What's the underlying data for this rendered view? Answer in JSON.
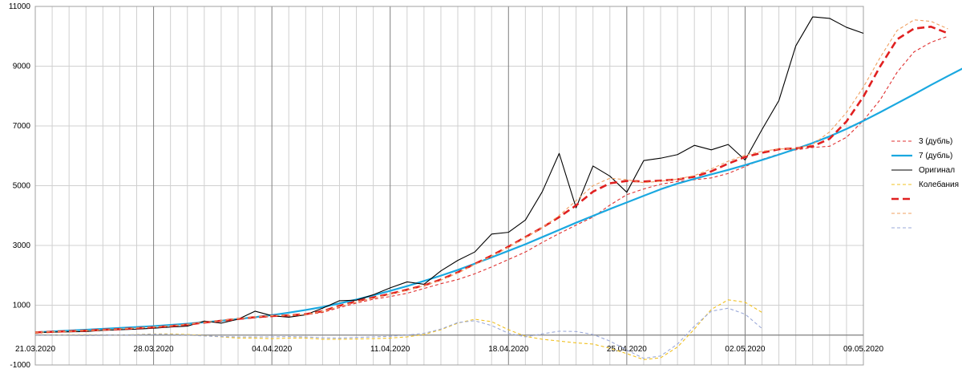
{
  "chart_data": {
    "type": "line",
    "title": "",
    "xlabel": "",
    "ylabel": "",
    "x_start": "21.03.2020",
    "x_end": "09.05.2020",
    "x_ticks": [
      "21.03.2020",
      "28.03.2020",
      "04.04.2020",
      "11.04.2020",
      "18.04.2020",
      "25.04.2020",
      "02.05.2020",
      "09.05.2020"
    ],
    "ylim": [
      -1000,
      11000
    ],
    "y_ticks": [
      -1000,
      1000,
      3000,
      5000,
      7000,
      9000,
      11000
    ],
    "grid": true,
    "legend_position": "right",
    "series": [
      {
        "name": "3 (дубль)",
        "color": "#e03030",
        "dash": "dashed-thin",
        "values": [
          100,
          110,
          120,
          140,
          170,
          200,
          230,
          260,
          300,
          350,
          420,
          470,
          520,
          580,
          620,
          640,
          680,
          760,
          920,
          1070,
          1200,
          1290,
          1400,
          1560,
          1720,
          1860,
          2050,
          2280,
          2530,
          2780,
          3100,
          3400,
          3680,
          3950,
          4350,
          4700,
          4890,
          5050,
          5140,
          5200,
          5260,
          5410,
          5640,
          5880,
          6060,
          6200,
          6280,
          6320,
          6620,
          7180,
          7880,
          8800,
          9480,
          9800,
          10000
        ]
      },
      {
        "name": "7 (дубль)",
        "color": "#1aa8e0",
        "dash": "solid-thick",
        "values": [
          90,
          120,
          150,
          180,
          210,
          240,
          270,
          300,
          340,
          380,
          430,
          480,
          540,
          600,
          670,
          750,
          840,
          940,
          1060,
          1190,
          1330,
          1480,
          1640,
          1810,
          1990,
          2180,
          2390,
          2600,
          2820,
          3040,
          3280,
          3520,
          3760,
          3990,
          4220,
          4440,
          4660,
          4880,
          5070,
          5230,
          5380,
          5530,
          5690,
          5860,
          6040,
          6230,
          6430,
          6650,
          6900,
          7170,
          7460,
          7760,
          8060,
          8370,
          8670,
          8960,
          9200,
          9360,
          9480
        ]
      },
      {
        "name": "Оригинал",
        "color": "#000000",
        "dash": "solid-thin",
        "values": [
          90,
          100,
          110,
          120,
          160,
          180,
          200,
          230,
          270,
          300,
          470,
          400,
          530,
          800,
          650,
          600,
          680,
          900,
          1150,
          1170,
          1350,
          1580,
          1780,
          1700,
          2150,
          2500,
          2780,
          3380,
          3440,
          3850,
          4800,
          6080,
          4260,
          5660,
          5320,
          4780,
          5840,
          5920,
          6040,
          6350,
          6200,
          6380,
          5860,
          6880,
          7850,
          9680,
          10650,
          10600,
          10300,
          10100
        ]
      },
      {
        "name": "Колебания",
        "color": "#f0c020",
        "dash": "dashed-thin",
        "values": [
          20,
          10,
          0,
          -10,
          -10,
          0,
          20,
          40,
          40,
          20,
          -20,
          -60,
          -100,
          -100,
          -120,
          -100,
          -100,
          -140,
          -140,
          -130,
          -120,
          -100,
          -60,
          20,
          180,
          400,
          530,
          450,
          180,
          -40,
          -140,
          -200,
          -260,
          -300,
          -440,
          -620,
          -820,
          -760,
          -400,
          200,
          860,
          1180,
          1100,
          760
        ]
      },
      {
        "name": "",
        "color": "#e02020",
        "dash": "dashed-thick",
        "values": [
          90,
          110,
          130,
          150,
          180,
          200,
          230,
          260,
          300,
          350,
          420,
          480,
          540,
          600,
          640,
          660,
          700,
          800,
          980,
          1130,
          1260,
          1380,
          1520,
          1660,
          1860,
          2100,
          2380,
          2660,
          2960,
          3280,
          3600,
          3950,
          4340,
          4800,
          5080,
          5160,
          5140,
          5170,
          5210,
          5300,
          5480,
          5740,
          5960,
          6100,
          6220,
          6250,
          6320,
          6570,
          7150,
          7980,
          9000,
          9900,
          10260,
          10320,
          10100
        ]
      },
      {
        "name": "",
        "color": "#f0a060",
        "dash": "dashed-thin",
        "values": [
          95,
          110,
          125,
          150,
          175,
          205,
          240,
          270,
          310,
          360,
          430,
          490,
          550,
          610,
          650,
          660,
          690,
          790,
          960,
          1110,
          1240,
          1360,
          1500,
          1650,
          1840,
          2080,
          2360,
          2640,
          2940,
          3260,
          3600,
          4000,
          4500,
          5000,
          5250,
          5200,
          5100,
          5150,
          5220,
          5340,
          5560,
          5820,
          6020,
          6150,
          6230,
          6240,
          6380,
          6800,
          7450,
          8300,
          9300,
          10200,
          10550,
          10500,
          10250
        ]
      },
      {
        "name": "",
        "color": "#9aa8d8",
        "dash": "dashed-thin",
        "values": [
          10,
          0,
          -10,
          -20,
          -10,
          0,
          10,
          30,
          20,
          0,
          -30,
          -50,
          -60,
          -60,
          -60,
          -50,
          -60,
          -90,
          -100,
          -80,
          -60,
          -40,
          0,
          60,
          200,
          420,
          480,
          320,
          60,
          -60,
          40,
          130,
          120,
          20,
          -200,
          -500,
          -780,
          -700,
          -300,
          300,
          800,
          900,
          700,
          220
        ]
      }
    ]
  }
}
